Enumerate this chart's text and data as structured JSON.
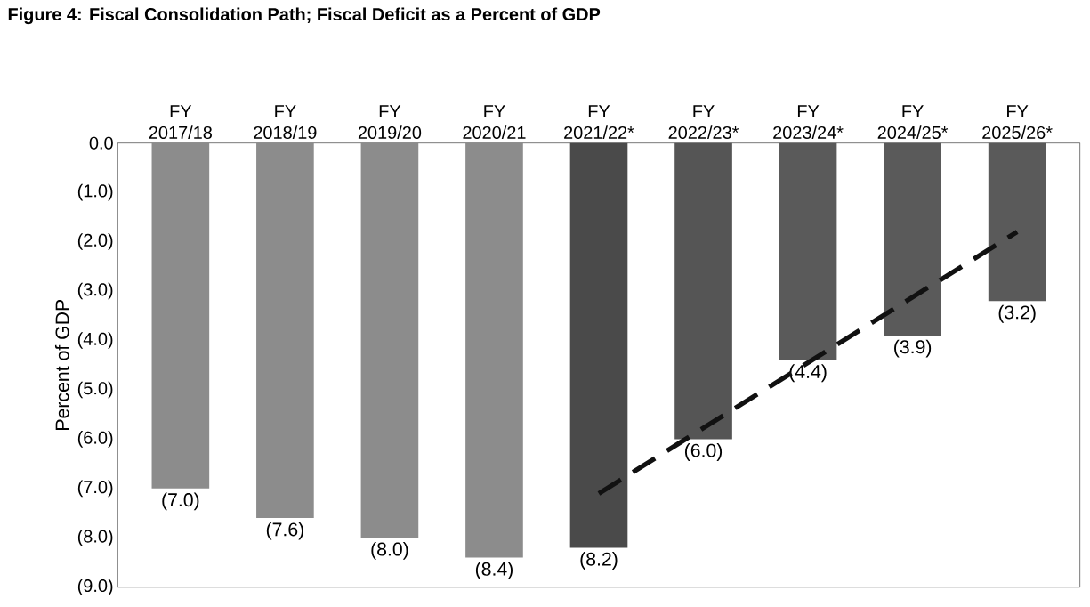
{
  "chart_data": {
    "type": "bar",
    "title": "Figure 4: Fiscal Consolidation Path; Fiscal Deficit as a Percent of GDP",
    "ylabel": "Percent of GDP",
    "categories": [
      "FY 2017/18",
      "FY 2018/19",
      "FY 2019/20",
      "FY 2020/21",
      "FY 2021/22*",
      "FY 2022/23*",
      "FY 2023/24*",
      "FY 2024/25*",
      "FY 2025/26*"
    ],
    "series": [
      {
        "values": [
          -7.0,
          -7.6,
          -8.0,
          -8.4,
          -8.2,
          -6.0,
          -4.4,
          -3.9,
          -3.2
        ],
        "colors": [
          "#8c8c8c",
          "#8c8c8c",
          "#8c8c8c",
          "#8c8c8c",
          "#4a4a4a",
          "#555555",
          "#5a5a5a",
          "#5a5a5a",
          "#5a5a5a"
        ],
        "value_labels": [
          "(7.0)",
          "(7.6)",
          "(8.0)",
          "(8.4)",
          "(8.2)",
          "(6.0)",
          "(4.4)",
          "(3.9)",
          "(3.2)"
        ]
      },
      {
        "type": "line",
        "x": [
          "FY 2021/22*",
          "FY 2025/26*"
        ],
        "values": [
          -7.1,
          -1.8
        ],
        "color": "#111111",
        "line_style": "dashed",
        "marker": "none"
      }
    ],
    "ylim": [
      -9,
      0
    ],
    "yticks": [
      {
        "value": 0,
        "label": "0.0"
      },
      {
        "value": -1,
        "label": "(1.0)"
      },
      {
        "value": -2,
        "label": "(2.0)"
      },
      {
        "value": -3,
        "label": "(3.0)"
      },
      {
        "value": -4,
        "label": "(4.0)"
      },
      {
        "value": -5,
        "label": "(5.0)"
      },
      {
        "value": -6,
        "label": "(6.0)"
      },
      {
        "value": -7,
        "label": "(7.0)"
      },
      {
        "value": -8,
        "label": "(8.0)"
      },
      {
        "value": -9,
        "label": "(9.0)"
      }
    ],
    "grid": false
  }
}
